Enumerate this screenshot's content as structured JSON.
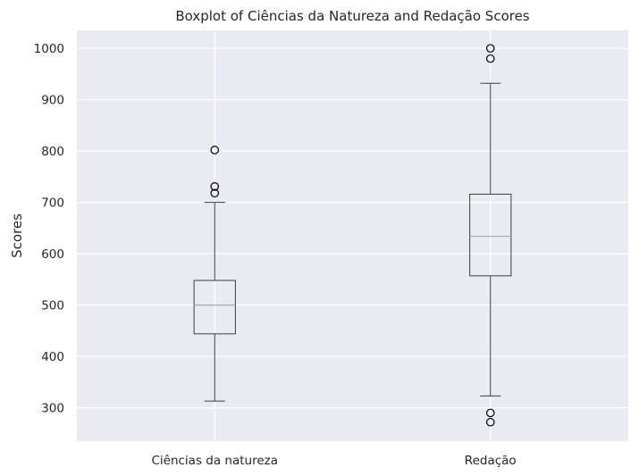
{
  "chart_data": {
    "type": "boxplot",
    "title": "Boxplot of Ciências da Natureza and Redação Scores",
    "xlabel": "",
    "ylabel": "Scores",
    "ylim": [
      235,
      1035
    ],
    "yticks": [
      300,
      400,
      500,
      600,
      700,
      800,
      900,
      1000
    ],
    "grid": true,
    "colors": {
      "background": "#eaeaf2",
      "grid": "#ffffff",
      "box": "#3f3f3f",
      "median": "#a8a8a8",
      "text": "#262626"
    },
    "categories": [
      "Ciências da natureza",
      "Redação"
    ],
    "boxes": [
      {
        "name": "Ciências da natureza",
        "whisker_low": 313,
        "q1": 444,
        "median": 500,
        "q3": 548,
        "whisker_high": 700,
        "outliers": [
          718,
          731,
          802
        ]
      },
      {
        "name": "Redação",
        "whisker_low": 323,
        "q1": 557,
        "median": 634,
        "q3": 716,
        "whisker_high": 932,
        "outliers": [
          272,
          290,
          980,
          1000
        ]
      }
    ]
  }
}
